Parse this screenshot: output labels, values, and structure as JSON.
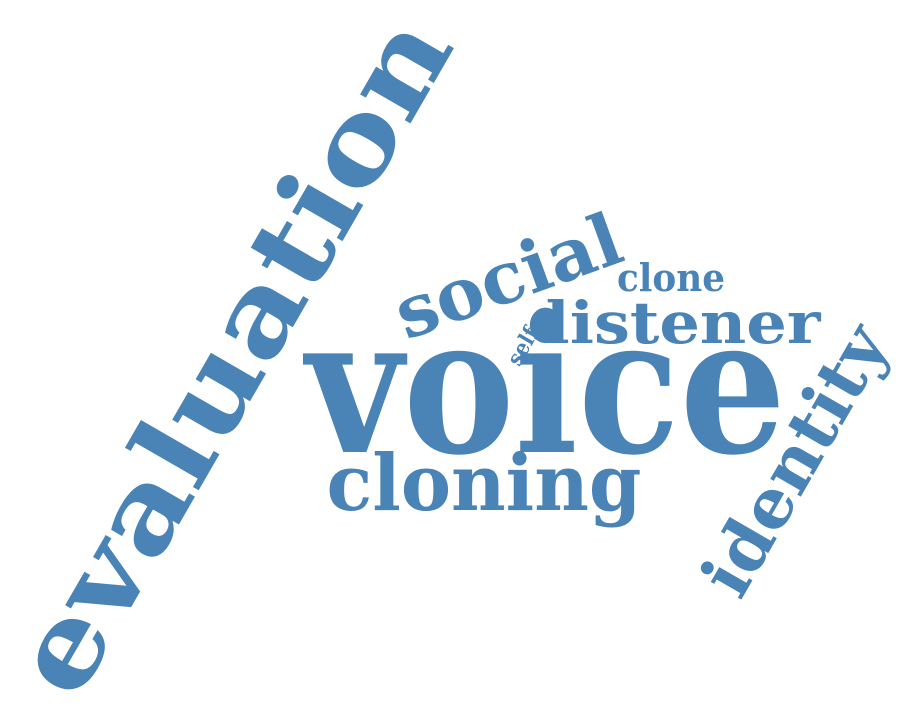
{
  "word_cloud": {
    "color": "#4a83b6",
    "words": [
      {
        "text": "evaluation",
        "orientation": "rotated"
      },
      {
        "text": "voice",
        "orientation": "horizontal"
      },
      {
        "text": "cloning",
        "orientation": "horizontal"
      },
      {
        "text": "social",
        "orientation": "rotated"
      },
      {
        "text": "listener",
        "orientation": "horizontal"
      },
      {
        "text": "identity",
        "orientation": "rotated"
      },
      {
        "text": "clone",
        "orientation": "horizontal"
      },
      {
        "text": "self",
        "orientation": "rotated"
      }
    ]
  }
}
